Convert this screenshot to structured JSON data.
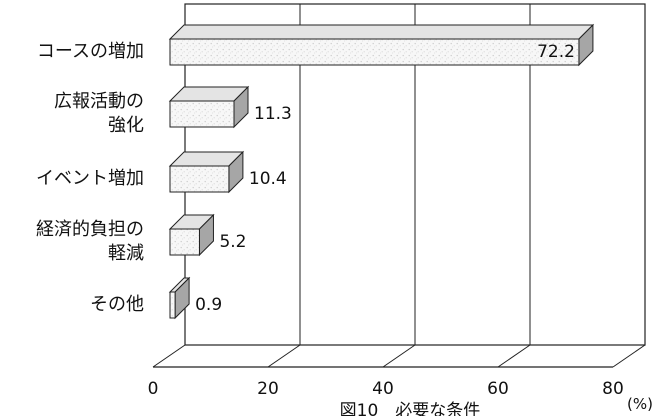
{
  "chart_data": {
    "type": "bar",
    "orientation": "horizontal",
    "style": "3d",
    "categories": [
      [
        "コースの増加"
      ],
      [
        "広報活動の",
        "強化"
      ],
      [
        "イベント増加"
      ],
      [
        "経済的負担の",
        "軽減"
      ],
      [
        "その他"
      ]
    ],
    "values": [
      72.2,
      11.3,
      10.4,
      5.2,
      0.9
    ],
    "data_labels": [
      "72.2",
      "11.3",
      "10.4",
      "5.2",
      "0.9"
    ],
    "xlim": [
      0,
      80
    ],
    "xticks": [
      0,
      20,
      40,
      60,
      80
    ],
    "xtick_labels": [
      "0",
      "20",
      "40",
      "60",
      "80"
    ],
    "unit_label": "(%)",
    "caption": "図10　必要な条件",
    "grid": true,
    "legend": "none",
    "colors": {
      "bar_front": "#f6f6f6",
      "bar_top": "#e4e4e4",
      "bar_side": "#a6a6a6",
      "line": "#222222"
    }
  }
}
